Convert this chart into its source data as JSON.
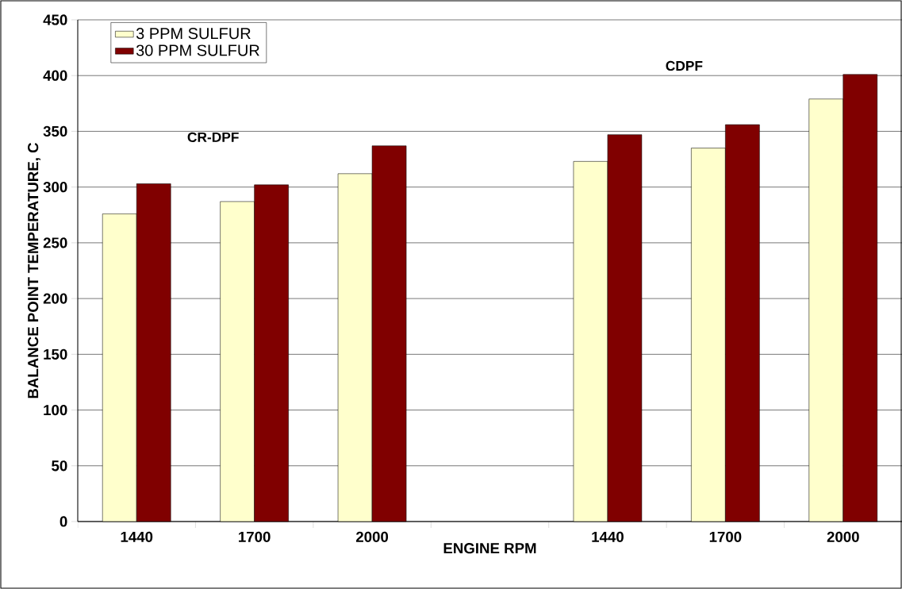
{
  "chart_data": {
    "type": "bar",
    "xlabel": "ENGINE RPM",
    "ylabel": "BALANCE POINT TEMPERATURE, C",
    "categories": [
      "1440",
      "1700",
      "2000",
      null,
      "1440",
      "1700",
      "2000"
    ],
    "series": [
      {
        "name": "3 PPM SULFUR",
        "color": "#ffffcc",
        "values": [
          276,
          287,
          312,
          null,
          323,
          335,
          379
        ]
      },
      {
        "name": "30 PPM SULFUR",
        "color": "#800000",
        "values": [
          303,
          302,
          337,
          null,
          347,
          356,
          401
        ]
      }
    ],
    "annotations": [
      "CR-DPF",
      "CDPF"
    ],
    "ylim": [
      0,
      450
    ],
    "yticks": [
      0,
      50,
      100,
      150,
      200,
      250,
      300,
      350,
      400,
      450
    ],
    "grid": "y",
    "legend": "top left"
  }
}
